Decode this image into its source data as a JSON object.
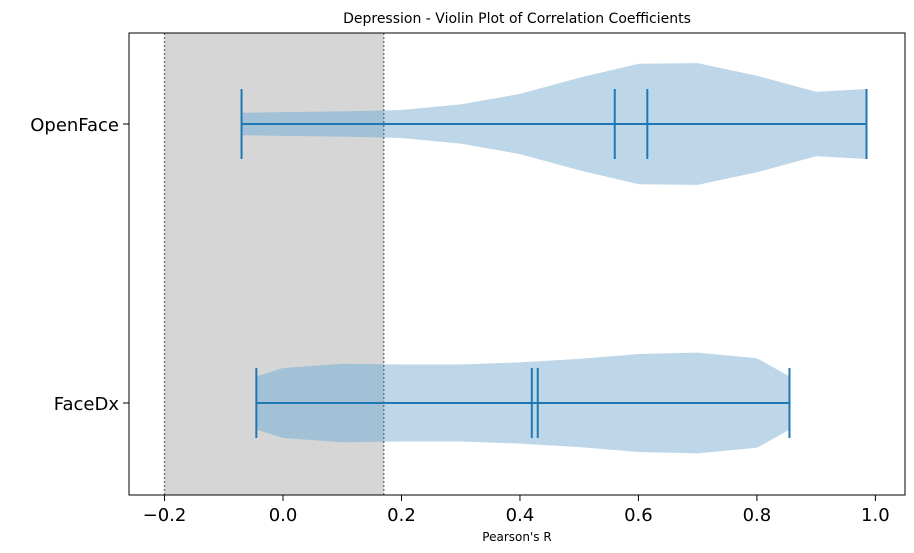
{
  "chart_data": {
    "type": "violin",
    "orientation": "horizontal",
    "title": "Depression - Violin Plot of Correlation Coefficients",
    "xlabel": "Pearson's R",
    "ylabel": "",
    "xlim": [
      -0.26,
      1.05
    ],
    "x_ticks": [
      -0.2,
      0.0,
      0.2,
      0.4,
      0.6,
      0.8,
      1.0
    ],
    "x_tick_labels": [
      "−0.2",
      "0.0",
      "0.2",
      "0.4",
      "0.6",
      "0.8",
      "1.0"
    ],
    "categories": [
      "OpenFace",
      "FaceDx"
    ],
    "shaded_region": {
      "x_start": -0.2,
      "x_end": 0.17,
      "color": "#d6d6d6",
      "border_style": "dotted"
    },
    "violin_color": "#b9d5e8",
    "line_color": "#1f77b4",
    "grid": false,
    "series": [
      {
        "name": "OpenFace",
        "min": -0.07,
        "max": 0.985,
        "median": 0.56,
        "mean": 0.615,
        "density": [
          [
            -0.07,
            0.16
          ],
          [
            0.0,
            0.17
          ],
          [
            0.1,
            0.18
          ],
          [
            0.2,
            0.2
          ],
          [
            0.3,
            0.28
          ],
          [
            0.4,
            0.43
          ],
          [
            0.5,
            0.66
          ],
          [
            0.6,
            0.86
          ],
          [
            0.7,
            0.87
          ],
          [
            0.8,
            0.69
          ],
          [
            0.9,
            0.46
          ],
          [
            0.985,
            0.5
          ]
        ]
      },
      {
        "name": "FaceDx",
        "min": -0.045,
        "max": 0.855,
        "median": 0.42,
        "mean": 0.43,
        "density": [
          [
            -0.045,
            0.38
          ],
          [
            0.0,
            0.5
          ],
          [
            0.1,
            0.56
          ],
          [
            0.2,
            0.55
          ],
          [
            0.3,
            0.55
          ],
          [
            0.4,
            0.58
          ],
          [
            0.5,
            0.63
          ],
          [
            0.6,
            0.7
          ],
          [
            0.7,
            0.72
          ],
          [
            0.8,
            0.64
          ],
          [
            0.855,
            0.38
          ]
        ]
      }
    ]
  }
}
